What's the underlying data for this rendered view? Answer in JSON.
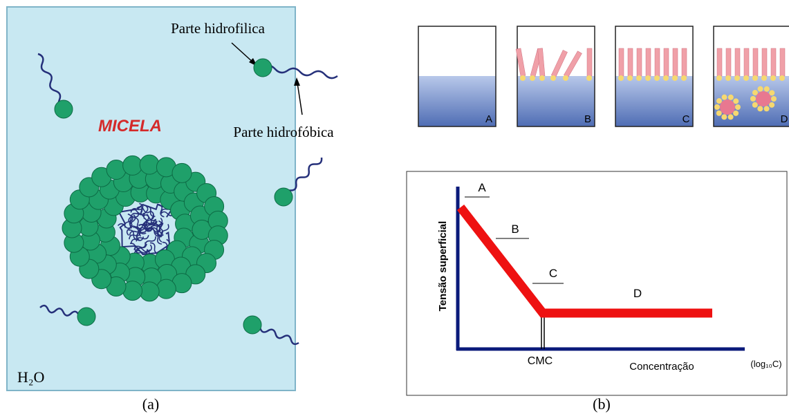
{
  "panel_a": {
    "label_hydrophilic": "Parte hidrofilica",
    "label_hydrophobic": "Parte hidrofóbica",
    "title": "MICELA",
    "solvent": "H₂O",
    "caption": "(a)"
  },
  "panel_b": {
    "beakers": [
      {
        "label": "A"
      },
      {
        "label": "B"
      },
      {
        "label": "C"
      },
      {
        "label": "D"
      }
    ],
    "graph": {
      "stages": [
        "A",
        "B",
        "C",
        "D"
      ],
      "y_axis_label": "Tensão superficial",
      "cmc_label": "CMC",
      "x_axis_label": "Concentração",
      "x_scale_label": "(log₁₀C)"
    },
    "caption": "(b)"
  }
}
